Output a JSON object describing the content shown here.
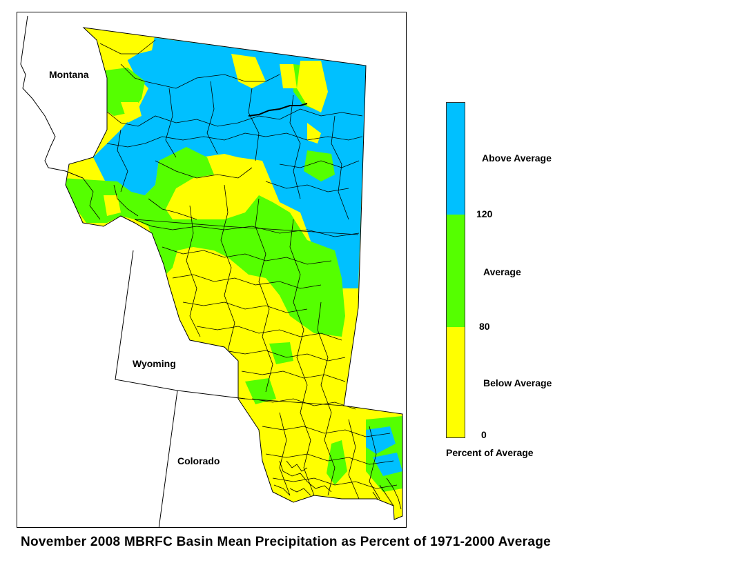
{
  "title": "November 2008 MBRFC Basin Mean Precipitation as Percent of 1971-2000 Average",
  "states": {
    "montana": "Montana",
    "wyoming": "Wyoming",
    "colorado": "Colorado"
  },
  "legend": {
    "caption": "Percent of Average",
    "categories": [
      {
        "label": "Above Average",
        "min": 120,
        "color": "#00c0ff"
      },
      {
        "label": "Average",
        "min": 80,
        "max": 120,
        "color": "#55ff00"
      },
      {
        "label": "Below Average",
        "min": 0,
        "max": 80,
        "color": "#ffff00"
      }
    ],
    "ticks": [
      "120",
      "80",
      "0"
    ]
  }
}
